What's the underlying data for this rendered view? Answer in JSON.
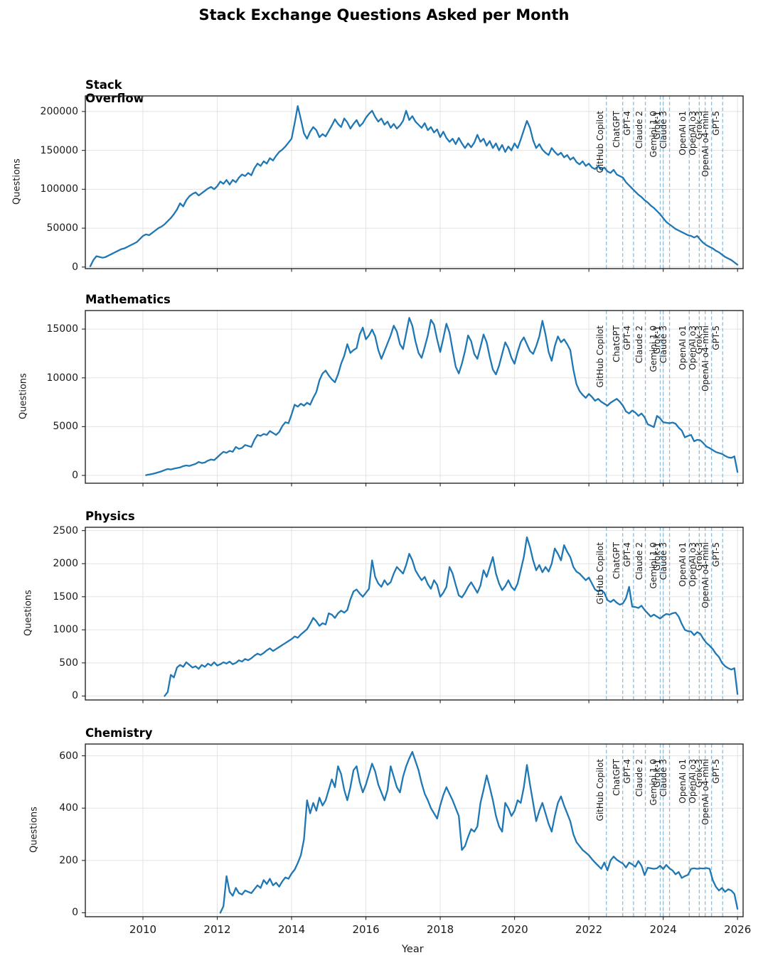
{
  "figure": {
    "title": "Stack Exchange Questions Asked per Month",
    "xlabel": "Year",
    "ylabel": "Questions",
    "background": "#ffffff"
  },
  "style": {
    "line_color": "#1f77b4",
    "event_line_color": "#85b5d6",
    "grid_color": "#e3e3e3",
    "spine_color": "#262626",
    "text_color": "#1a1a1a"
  },
  "x_axis": {
    "lim": [
      2008.45,
      2026.15
    ],
    "ticks": [
      2010,
      2012,
      2014,
      2016,
      2018,
      2020,
      2022,
      2024,
      2026
    ]
  },
  "events": [
    {
      "label": "GitHub Copilot",
      "year": 2022.47
    },
    {
      "label": "ChatGPT",
      "year": 2022.91
    },
    {
      "label": "GPT-4",
      "year": 2023.2
    },
    {
      "label": "Claude 2",
      "year": 2023.52
    },
    {
      "label": "Gemini 1.0",
      "year": 2023.92
    },
    {
      "label": "Grok-1",
      "year": 2024.0
    },
    {
      "label": "Claude 3",
      "year": 2024.17
    },
    {
      "label": "OpenAI o1",
      "year": 2024.7
    },
    {
      "label": "OpenAI o3",
      "year": 2024.97
    },
    {
      "label": "Grok-3",
      "year": 2025.13
    },
    {
      "label": "OpenAI o4-mini",
      "year": 2025.3
    },
    {
      "label": "GPT-5",
      "year": 2025.6
    }
  ],
  "chart_data": [
    {
      "type": "line",
      "title": "Stack Overflow",
      "ylabel": "Questions",
      "yticks": [
        0,
        50000,
        100000,
        150000,
        200000
      ],
      "ylim": [
        -2000,
        220000
      ],
      "start_year": 2008.583,
      "step_years": 0.08333,
      "values": [
        1000,
        9000,
        14000,
        13000,
        12000,
        13000,
        15000,
        17000,
        19000,
        21000,
        23000,
        24000,
        26000,
        28000,
        30000,
        32000,
        36000,
        40000,
        42000,
        41000,
        44000,
        47000,
        50000,
        52000,
        55000,
        59000,
        63000,
        68000,
        74000,
        82000,
        78000,
        86000,
        91000,
        94000,
        96000,
        92000,
        95000,
        98000,
        101000,
        103000,
        100000,
        104000,
        110000,
        107000,
        112000,
        106000,
        112000,
        109000,
        115000,
        119000,
        117000,
        121000,
        118000,
        127000,
        133000,
        130000,
        136000,
        133000,
        140000,
        137000,
        143000,
        148000,
        151000,
        155000,
        160000,
        165000,
        185000,
        207000,
        190000,
        172000,
        165000,
        174000,
        180000,
        176000,
        167000,
        171000,
        168000,
        175000,
        182000,
        190000,
        184000,
        180000,
        191000,
        186000,
        178000,
        184000,
        189000,
        181000,
        185000,
        192000,
        197000,
        201000,
        193000,
        187000,
        191000,
        183000,
        187000,
        179000,
        184000,
        178000,
        182000,
        188000,
        201000,
        189000,
        194000,
        187000,
        183000,
        179000,
        185000,
        176000,
        180000,
        173000,
        177000,
        167000,
        174000,
        166000,
        161000,
        165000,
        158000,
        166000,
        159000,
        153000,
        159000,
        154000,
        160000,
        170000,
        161000,
        165000,
        156000,
        162000,
        153000,
        159000,
        150000,
        157000,
        148000,
        155000,
        150000,
        159000,
        153000,
        164000,
        176000,
        188000,
        179000,
        163000,
        153000,
        158000,
        151000,
        147000,
        144000,
        153000,
        148000,
        144000,
        147000,
        141000,
        144000,
        138000,
        141000,
        135000,
        132000,
        136000,
        130000,
        133000,
        128000,
        126000,
        130000,
        125000,
        128000,
        123000,
        121000,
        125000,
        119000,
        117000,
        115000,
        109000,
        105000,
        101000,
        97000,
        93000,
        90000,
        86000,
        83000,
        79000,
        76000,
        72000,
        68000,
        63000,
        58000,
        55000,
        52000,
        49000,
        47000,
        45000,
        43000,
        41000,
        40000,
        38000,
        40000,
        35000,
        31000,
        28000,
        26000,
        24000,
        21000,
        19000,
        16000,
        13000,
        11000,
        9000,
        6000,
        3000
      ]
    },
    {
      "type": "line",
      "title": "Mathematics",
      "ylabel": "Questions",
      "yticks": [
        0,
        5000,
        10000,
        15000
      ],
      "ylim": [
        -800,
        16900
      ],
      "start_year": 2010.083,
      "step_years": 0.08333,
      "values": [
        30,
        90,
        150,
        230,
        320,
        420,
        540,
        660,
        610,
        690,
        760,
        820,
        950,
        1020,
        970,
        1080,
        1180,
        1380,
        1270,
        1320,
        1520,
        1630,
        1570,
        1850,
        2150,
        2420,
        2320,
        2520,
        2420,
        2920,
        2720,
        2820,
        3120,
        3020,
        2920,
        3650,
        4150,
        4050,
        4250,
        4150,
        4550,
        4350,
        4150,
        4450,
        5050,
        5450,
        5350,
        6250,
        7250,
        7050,
        7350,
        7150,
        7450,
        7250,
        7950,
        8550,
        9750,
        10450,
        10750,
        10250,
        9850,
        9550,
        10350,
        11450,
        12250,
        13450,
        12550,
        12850,
        13050,
        14450,
        15150,
        13950,
        14350,
        14950,
        14250,
        12850,
        11950,
        12750,
        13550,
        14350,
        15350,
        14750,
        13450,
        12950,
        14550,
        16150,
        15350,
        13750,
        12550,
        12050,
        13150,
        14350,
        15950,
        15450,
        13950,
        12650,
        14050,
        15550,
        14650,
        12850,
        11150,
        10450,
        11450,
        12750,
        14350,
        13750,
        12450,
        11950,
        13150,
        14450,
        13650,
        12150,
        10850,
        10350,
        11250,
        12450,
        13650,
        13050,
        12050,
        11450,
        12650,
        13650,
        14150,
        13450,
        12750,
        12450,
        13250,
        14250,
        15850,
        14450,
        12650,
        11750,
        13250,
        14250,
        13650,
        13950,
        13450,
        12850,
        10850,
        9350,
        8650,
        8250,
        7950,
        8350,
        8050,
        7650,
        7850,
        7550,
        7350,
        7150,
        7450,
        7650,
        7850,
        7550,
        7150,
        6550,
        6350,
        6650,
        6450,
        6100,
        6350,
        5950,
        5250,
        5100,
        4950,
        6100,
        5850,
        5450,
        5400,
        5350,
        5420,
        5300,
        4900,
        4600,
        3900,
        4050,
        4150,
        3500,
        3650,
        3600,
        3300,
        2950,
        2800,
        2600,
        2400,
        2300,
        2200,
        2000,
        1850,
        1800,
        1950,
        350
      ]
    },
    {
      "type": "line",
      "title": "Physics",
      "ylabel": "Questions",
      "yticks": [
        0,
        500,
        1000,
        1500,
        2000,
        2500
      ],
      "ylim": [
        -60,
        2550
      ],
      "start_year": 2010.583,
      "step_years": 0.08333,
      "values": [
        0,
        60,
        320,
        280,
        430,
        470,
        440,
        510,
        470,
        430,
        450,
        410,
        470,
        440,
        490,
        460,
        510,
        460,
        480,
        510,
        490,
        520,
        480,
        500,
        540,
        520,
        560,
        540,
        570,
        610,
        640,
        620,
        650,
        690,
        720,
        680,
        710,
        740,
        770,
        800,
        830,
        860,
        900,
        880,
        930,
        970,
        1010,
        1090,
        1180,
        1130,
        1060,
        1100,
        1080,
        1250,
        1230,
        1180,
        1250,
        1290,
        1260,
        1300,
        1460,
        1580,
        1610,
        1550,
        1500,
        1560,
        1620,
        2050,
        1800,
        1700,
        1650,
        1750,
        1680,
        1720,
        1850,
        1950,
        1900,
        1850,
        1980,
        2150,
        2050,
        1900,
        1820,
        1750,
        1800,
        1690,
        1620,
        1750,
        1680,
        1500,
        1560,
        1650,
        1950,
        1850,
        1680,
        1520,
        1490,
        1560,
        1650,
        1720,
        1640,
        1560,
        1670,
        1900,
        1800,
        1950,
        2100,
        1850,
        1700,
        1600,
        1660,
        1750,
        1650,
        1600,
        1700,
        1900,
        2100,
        2400,
        2250,
        2050,
        1900,
        1980,
        1870,
        1950,
        1880,
        2000,
        2230,
        2150,
        2050,
        2280,
        2180,
        2100,
        1950,
        1880,
        1850,
        1800,
        1750,
        1790,
        1700,
        1610,
        1580,
        1600,
        1560,
        1450,
        1420,
        1455,
        1410,
        1380,
        1400,
        1480,
        1650,
        1350,
        1345,
        1330,
        1365,
        1300,
        1250,
        1200,
        1230,
        1200,
        1170,
        1210,
        1240,
        1230,
        1250,
        1260,
        1200,
        1090,
        1000,
        980,
        975,
        920,
        965,
        940,
        860,
        800,
        760,
        710,
        640,
        590,
        500,
        450,
        420,
        400,
        420,
        30
      ]
    },
    {
      "type": "line",
      "title": "Chemistry",
      "ylabel": "Questions",
      "yticks": [
        0,
        200,
        400,
        600
      ],
      "ylim": [
        -15,
        645
      ],
      "start_year": 2012.083,
      "step_years": 0.08333,
      "values": [
        0,
        25,
        140,
        80,
        65,
        95,
        75,
        70,
        85,
        80,
        75,
        90,
        105,
        95,
        125,
        110,
        130,
        105,
        115,
        100,
        120,
        135,
        130,
        150,
        165,
        190,
        220,
        280,
        430,
        380,
        420,
        390,
        440,
        410,
        430,
        470,
        510,
        480,
        560,
        530,
        470,
        430,
        480,
        545,
        560,
        500,
        460,
        490,
        530,
        570,
        540,
        490,
        460,
        430,
        470,
        560,
        520,
        480,
        460,
        520,
        560,
        590,
        615,
        580,
        545,
        495,
        455,
        430,
        400,
        380,
        360,
        410,
        450,
        480,
        455,
        430,
        400,
        370,
        240,
        255,
        290,
        320,
        310,
        330,
        420,
        470,
        525,
        480,
        430,
        370,
        330,
        310,
        420,
        400,
        370,
        390,
        430,
        420,
        480,
        565,
        490,
        420,
        350,
        390,
        420,
        380,
        340,
        310,
        370,
        420,
        445,
        410,
        380,
        350,
        300,
        270,
        255,
        240,
        230,
        220,
        205,
        192,
        180,
        168,
        192,
        162,
        200,
        215,
        203,
        195,
        188,
        173,
        192,
        185,
        176,
        198,
        180,
        144,
        172,
        170,
        168,
        170,
        180,
        167,
        183,
        170,
        162,
        147,
        156,
        133,
        140,
        145,
        168,
        170,
        168,
        170,
        169,
        171,
        168,
        125,
        100,
        85,
        95,
        80,
        90,
        85,
        72,
        15
      ]
    }
  ]
}
